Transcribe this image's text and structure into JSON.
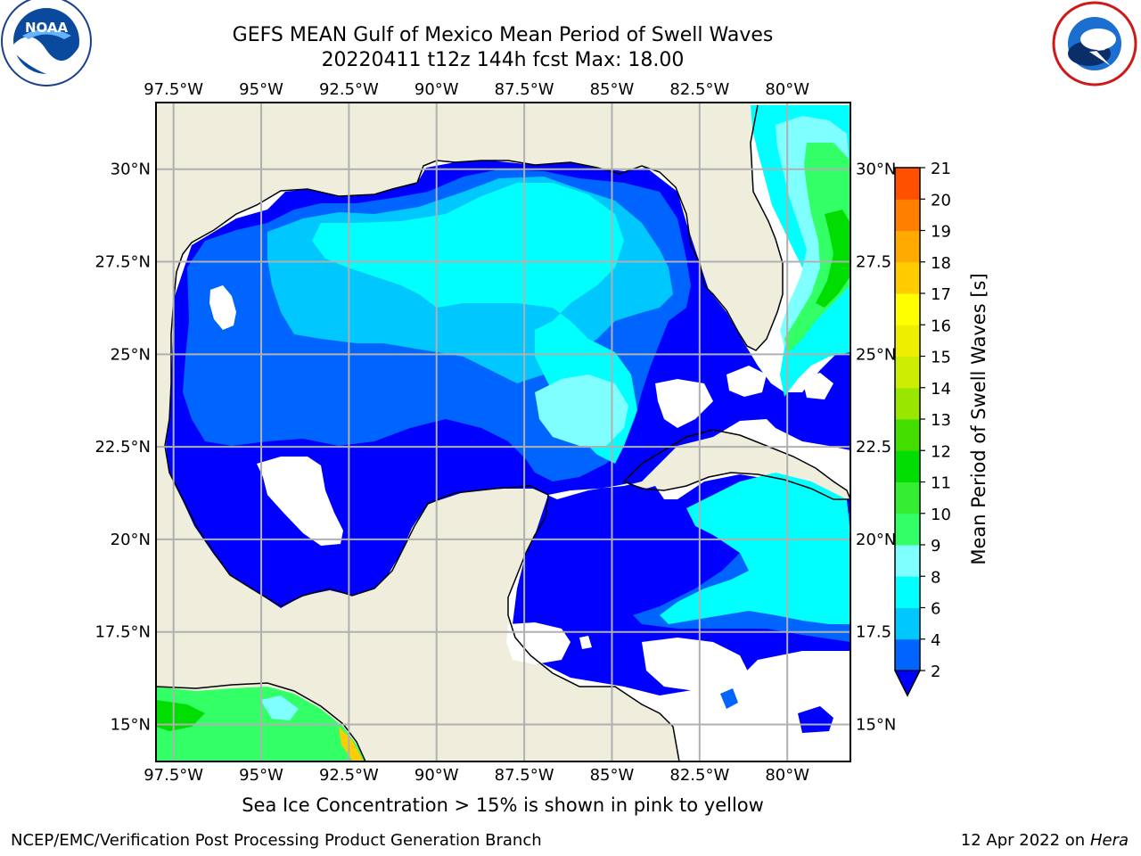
{
  "title_line1": "GEFS MEAN Gulf of Mexico Mean Period of Swell Waves",
  "title_line2": "20220411 t12z 144h fcst   Max: 18.00",
  "subcaption": "Sea Ice Concentration > 15% is shown in pink to yellow",
  "footer_left": "NCEP/EMC/Verification Post Processing Product Generation Branch",
  "footer_right_prefix": "12 Apr 2022 on ",
  "footer_right_host": "Hera",
  "logos": {
    "left": "NOAA",
    "right": "NATIONAL WEATHER SERVICE"
  },
  "map": {
    "lon_labels": [
      "97.5°W",
      "95°W",
      "92.5°W",
      "90°W",
      "87.5°W",
      "85°W",
      "82.5°W",
      "80°W"
    ],
    "lat_labels_left": [
      "30°N",
      "27.5°N",
      "25°N",
      "22.5°N",
      "20°N",
      "17.5°N",
      "15°N"
    ],
    "lat_labels_right": [
      "30°N",
      "27.5",
      "25°N",
      "22.5",
      "20°N",
      "17.5",
      "15°N"
    ],
    "lon_values": [
      -97.5,
      -95,
      -92.5,
      -90,
      -87.5,
      -85,
      -82.5,
      -80
    ],
    "lat_values": [
      30,
      27.5,
      25,
      22.5,
      20,
      17.5,
      15
    ],
    "extent": {
      "lon_min": -98,
      "lon_max": -78.2,
      "lat_min": 14,
      "lat_max": 31.8
    }
  },
  "colorbar": {
    "title": "Mean Period of Swell Waves [s]",
    "ticks": [
      "2",
      "4",
      "6",
      "8",
      "9",
      "10",
      "11",
      "12",
      "13",
      "14",
      "15",
      "16",
      "17",
      "18",
      "19",
      "20",
      "21"
    ],
    "colors": [
      "#0064ff",
      "#00c8ff",
      "#00ffff",
      "#7fffff",
      "#33ff66",
      "#33ee33",
      "#00dd00",
      "#44dd00",
      "#99e600",
      "#ccee00",
      "#eeee00",
      "#ffff00",
      "#ffcc00",
      "#ffaa00",
      "#ff8000",
      "#ff5000",
      "#ff0000"
    ],
    "extend_color": "#0000ff"
  },
  "colors": {
    "land": "#efeddc",
    "deep_blue": "#0000ff",
    "mid_blue": "#0064ff",
    "sky": "#00c8ff",
    "cyan": "#00ffff",
    "pale_cyan": "#7fffff",
    "green": "#33ff66"
  }
}
